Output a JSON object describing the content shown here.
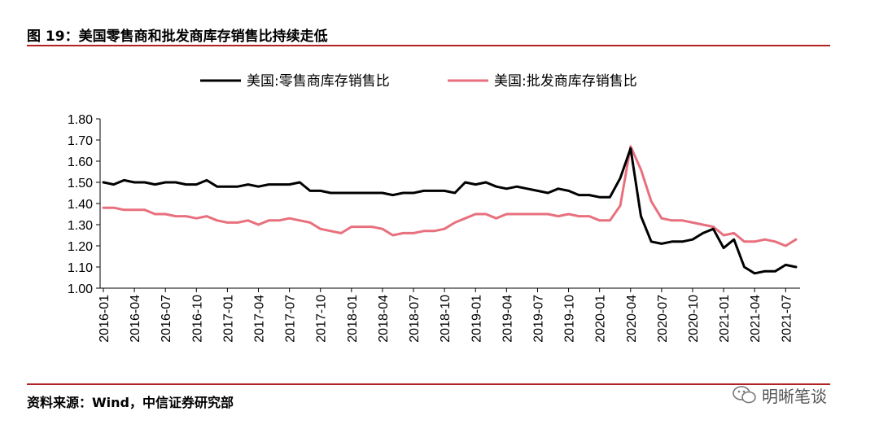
{
  "header": {
    "title": "图 19：美国零售商和批发商库存销售比持续走低"
  },
  "footer": {
    "source": "资料来源：Wind，中信证券研究部",
    "watermark": "明晰笔谈",
    "watermark_icon": "wechat-icon"
  },
  "colors": {
    "series1": "#000000",
    "series2": "#e8707e",
    "rule": "#b22222"
  },
  "chart_data": {
    "type": "line",
    "ylim": [
      1.0,
      1.8
    ],
    "yticks": [
      "1.00",
      "1.10",
      "1.20",
      "1.30",
      "1.40",
      "1.50",
      "1.60",
      "1.70",
      "1.80"
    ],
    "xticks": [
      "2016-01",
      "2016-04",
      "2016-07",
      "2016-10",
      "2017-01",
      "2017-04",
      "2017-07",
      "2017-10",
      "2018-01",
      "2018-04",
      "2018-07",
      "2018-10",
      "2019-01",
      "2019-04",
      "2019-07",
      "2019-10",
      "2020-01",
      "2020-04",
      "2020-07",
      "2020-10",
      "2021-01",
      "2021-04",
      "2021-07"
    ],
    "legend_position": "top",
    "grid": false,
    "x_start": "2016-01",
    "series": [
      {
        "name": "美国:零售商库存销售比",
        "values": [
          1.5,
          1.49,
          1.51,
          1.5,
          1.5,
          1.49,
          1.5,
          1.5,
          1.49,
          1.49,
          1.51,
          1.48,
          1.48,
          1.48,
          1.49,
          1.48,
          1.49,
          1.49,
          1.49,
          1.5,
          1.46,
          1.46,
          1.45,
          1.45,
          1.45,
          1.45,
          1.45,
          1.45,
          1.44,
          1.45,
          1.45,
          1.46,
          1.46,
          1.46,
          1.45,
          1.5,
          1.49,
          1.5,
          1.48,
          1.47,
          1.48,
          1.47,
          1.46,
          1.45,
          1.47,
          1.46,
          1.44,
          1.44,
          1.43,
          1.43,
          1.52,
          1.66,
          1.34,
          1.22,
          1.21,
          1.22,
          1.22,
          1.23,
          1.26,
          1.28,
          1.19,
          1.23,
          1.1,
          1.07,
          1.08,
          1.08,
          1.11,
          1.1
        ]
      },
      {
        "name": "美国:批发商库存销售比",
        "values": [
          1.38,
          1.38,
          1.37,
          1.37,
          1.37,
          1.35,
          1.35,
          1.34,
          1.34,
          1.33,
          1.34,
          1.32,
          1.31,
          1.31,
          1.32,
          1.3,
          1.32,
          1.32,
          1.33,
          1.32,
          1.31,
          1.28,
          1.27,
          1.26,
          1.29,
          1.29,
          1.29,
          1.28,
          1.25,
          1.26,
          1.26,
          1.27,
          1.27,
          1.28,
          1.31,
          1.33,
          1.35,
          1.35,
          1.33,
          1.35,
          1.35,
          1.35,
          1.35,
          1.35,
          1.34,
          1.35,
          1.34,
          1.34,
          1.32,
          1.32,
          1.39,
          1.67,
          1.56,
          1.41,
          1.33,
          1.32,
          1.32,
          1.31,
          1.3,
          1.29,
          1.25,
          1.26,
          1.22,
          1.22,
          1.23,
          1.22,
          1.2,
          1.23
        ]
      }
    ]
  }
}
